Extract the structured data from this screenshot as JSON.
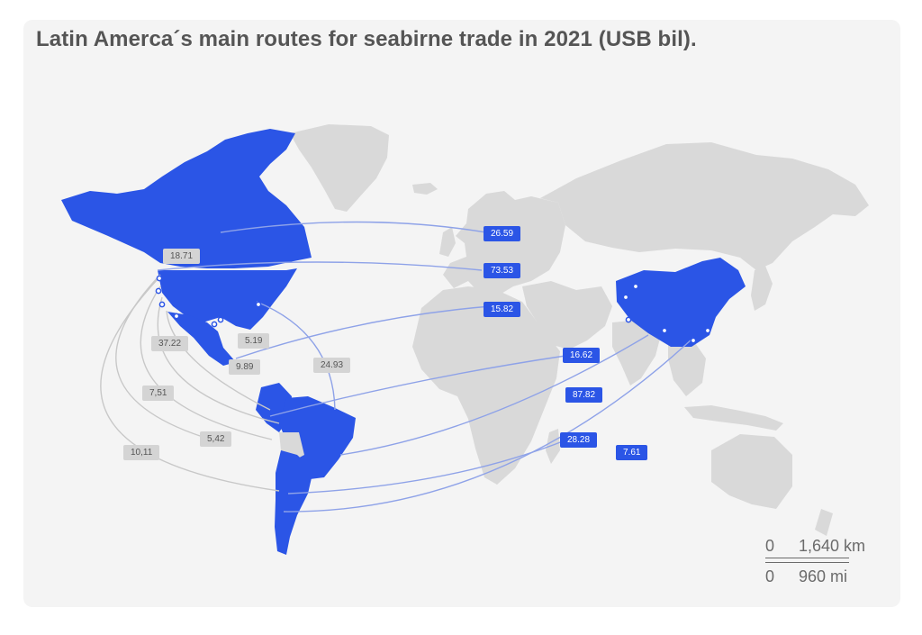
{
  "title": "Latin Amerca´s main routes for seabirne trade in 2021 (USB bil).",
  "colors": {
    "card": "#f4f4f4",
    "land": "#d9d9d9",
    "highlight": "#2b55e6",
    "route": "#8ea2e8",
    "route_gray": "#c8c8c8",
    "label_blue": "#2b55e6",
    "label_gray": "#d4d4d4"
  },
  "highlighted_regions": [
    "United States",
    "Canada",
    "Mexico",
    "Brazil",
    "Colombia",
    "Peru",
    "Argentina",
    "Chile",
    "China"
  ],
  "route_labels_blue": [
    "26.59",
    "73.53",
    "15.82",
    "16.62",
    "87.82",
    "28.28",
    "7.61"
  ],
  "route_labels_gray": [
    "18.71",
    "37.22",
    "5.19",
    "9.89",
    "24.93",
    "7,51",
    "5,42",
    "10,11"
  ],
  "scale": {
    "km_start": "0",
    "km_value": "1,640 km",
    "mi_start": "0",
    "mi_value": "960 mi"
  }
}
